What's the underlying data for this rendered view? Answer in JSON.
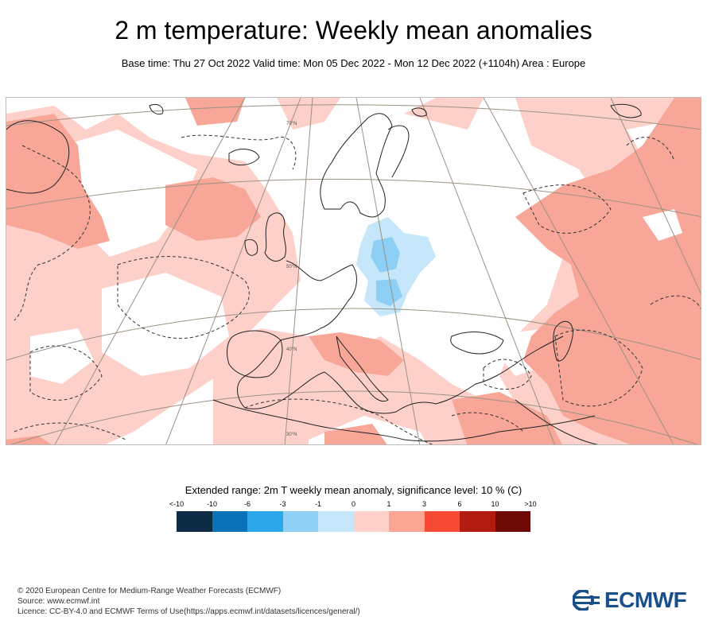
{
  "header": {
    "title": "2 m temperature: Weekly mean anomalies",
    "subtitle": "Base time: Thu 27 Oct 2022 Valid time: Mon 05 Dec 2022 - Mon 12 Dec 2022 (+1104h) Area : Europe"
  },
  "map": {
    "region": "Europe",
    "graticule_labels": [
      "70°N",
      "50°N",
      "40°N",
      "30°N"
    ],
    "colors": {
      "land_outline": "#222222",
      "graticule": "#9b9283"
    }
  },
  "legend": {
    "title": "Extended range: 2m T weekly mean anomaly, significance level: 10 % (C)",
    "ticks": [
      "<-10",
      "-10",
      "-6",
      "-3",
      "-1",
      "0",
      "1",
      "3",
      "6",
      "10",
      ">10"
    ],
    "colors": [
      "#0d2b45",
      "#0b72b7",
      "#2aa8e9",
      "#8ecff6",
      "#c6e6fa",
      "#fdd0ca",
      "#fba595",
      "#f64a34",
      "#b21b0f",
      "#6e0a06"
    ]
  },
  "footer": {
    "copyright": "© 2020 European Centre for Medium-Range Weather Forecasts (ECMWF)",
    "source": "Source: www.ecmwf.int",
    "licence": "Licence: CC-BY-4.0 and ECMWF Terms of Use(https://apps.ecmwf.int/datasets/licences/general/)"
  },
  "logo": {
    "text": "ECMWF",
    "color": "#1a4f8b"
  }
}
